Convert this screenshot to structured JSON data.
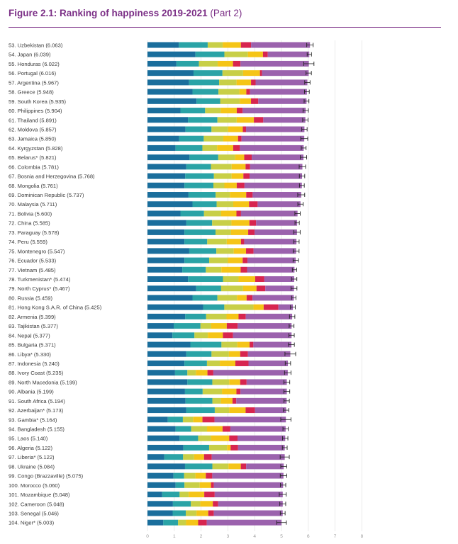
{
  "header": {
    "title_bold": "Figure 2.1: Ranking of happiness 2019-2021",
    "title_part": "(Part 2)"
  },
  "colors": {
    "title": "#7b2f86",
    "seg1": "#1a6e9c",
    "seg2": "#2aa3a6",
    "seg3": "#c8cf47",
    "seg4": "#f5c517",
    "seg5": "#d7254f",
    "seg6": "#9b62ad",
    "whisker": "#222222",
    "grid": "#e6e6e6"
  },
  "chart_data": {
    "type": "bar",
    "orientation": "horizontal-stacked",
    "title": "Figure 2.1: Ranking of happiness 2019-2021 (Part 2)",
    "xlim": [
      0,
      8
    ],
    "x_ticks": [
      "0",
      "1",
      "2",
      "3",
      "4",
      "5",
      "6",
      "7",
      "8"
    ],
    "segment_order": [
      "seg1",
      "seg2",
      "seg3",
      "seg4",
      "seg5",
      "seg6"
    ],
    "rows": [
      {
        "label": "53.  Uzbekistan (6.063)",
        "total": 6.063,
        "ci": 0.12,
        "segs": [
          1.17,
          1.08,
          0.56,
          0.68,
          0.38,
          2.2
        ]
      },
      {
        "label": "54.  Japan (6.039)",
        "total": 6.039,
        "ci": 0.08,
        "segs": [
          1.79,
          1.08,
          0.88,
          0.56,
          0.18,
          1.55
        ]
      },
      {
        "label": "55.  Honduras (6.022)",
        "total": 6.022,
        "ci": 0.19,
        "segs": [
          1.08,
          0.84,
          0.7,
          0.57,
          0.28,
          2.55
        ]
      },
      {
        "label": "56.  Portugal (6.016)",
        "total": 6.016,
        "ci": 0.1,
        "segs": [
          1.72,
          1.08,
          0.77,
          0.63,
          0.08,
          1.74
        ]
      },
      {
        "label": "57.  Argentina (5.967)",
        "total": 5.967,
        "ci": 0.1,
        "segs": [
          1.55,
          1.12,
          0.65,
          0.54,
          0.17,
          1.93
        ]
      },
      {
        "label": "58.  Greece (5.948)",
        "total": 5.948,
        "ci": 0.09,
        "segs": [
          1.68,
          0.97,
          0.78,
          0.26,
          0.14,
          2.12
        ]
      },
      {
        "label": "59.  South Korea (5.935)",
        "total": 5.935,
        "ci": 0.09,
        "segs": [
          1.83,
          0.88,
          0.73,
          0.42,
          0.27,
          1.8
        ]
      },
      {
        "label": "60.  Philippines (5.904)",
        "total": 5.904,
        "ci": 0.1,
        "segs": [
          1.23,
          0.92,
          0.58,
          0.6,
          0.22,
          2.35
        ]
      },
      {
        "label": "61.  Thailand (5.891)",
        "total": 5.891,
        "ci": 0.1,
        "segs": [
          1.51,
          1.1,
          0.72,
          0.64,
          0.35,
          1.57
        ]
      },
      {
        "label": "62.  Moldova (5.857)",
        "total": 5.857,
        "ci": 0.1,
        "segs": [
          1.42,
          0.97,
          0.62,
          0.55,
          0.12,
          2.18
        ]
      },
      {
        "label": "63.  Jamaica (5.850)",
        "total": 5.85,
        "ci": 0.13,
        "segs": [
          1.18,
          0.92,
          0.73,
          0.55,
          0.13,
          2.34
        ]
      },
      {
        "label": "64.  Kyrgyzstan (5.828)",
        "total": 5.828,
        "ci": 0.09,
        "segs": [
          1.05,
          1.0,
          0.55,
          0.6,
          0.25,
          2.38
        ]
      },
      {
        "label": "65.  Belarus* (5.821)",
        "total": 5.821,
        "ci": 0.12,
        "segs": [
          1.57,
          1.07,
          0.63,
          0.34,
          0.28,
          1.93
        ]
      },
      {
        "label": "66.  Colombia (5.781)",
        "total": 5.781,
        "ci": 0.12,
        "segs": [
          1.45,
          0.92,
          0.77,
          0.52,
          0.17,
          1.95
        ]
      },
      {
        "label": "67.  Bosnia and Herzegovina (5.768)",
        "total": 5.768,
        "ci": 0.1,
        "segs": [
          1.41,
          1.07,
          0.66,
          0.44,
          0.23,
          1.96
        ]
      },
      {
        "label": "68.  Mongolia (5.761)",
        "total": 5.761,
        "ci": 0.09,
        "segs": [
          1.38,
          1.08,
          0.41,
          0.46,
          0.29,
          2.14
        ]
      },
      {
        "label": "69.  Dominican Republic (5.737)",
        "total": 5.737,
        "ci": 0.13,
        "segs": [
          1.53,
          1.01,
          0.53,
          0.61,
          0.24,
          1.81
        ]
      },
      {
        "label": "70.  Malaysia (5.711)",
        "total": 5.711,
        "ci": 0.1,
        "segs": [
          1.68,
          0.9,
          0.62,
          0.59,
          0.32,
          1.6
        ]
      },
      {
        "label": "71.  Bolivia (5.600)",
        "total": 5.6,
        "ci": 0.1,
        "segs": [
          1.23,
          0.88,
          0.64,
          0.57,
          0.17,
          2.11
        ]
      },
      {
        "label": "72.  China (5.585)",
        "total": 5.585,
        "ci": 0.08,
        "segs": [
          1.45,
          0.96,
          0.72,
          0.67,
          0.25,
          1.53
        ]
      },
      {
        "label": "73.  Paraguay (5.578)",
        "total": 5.578,
        "ci": 0.12,
        "segs": [
          1.38,
          1.16,
          0.58,
          0.64,
          0.24,
          1.58
        ]
      },
      {
        "label": "74.  Peru (5.559)",
        "total": 5.559,
        "ci": 0.1,
        "segs": [
          1.38,
          0.85,
          0.73,
          0.53,
          0.12,
          1.95
        ]
      },
      {
        "label": "75.  Montenegro (5.547)",
        "total": 5.547,
        "ci": 0.11,
        "segs": [
          1.56,
          1.01,
          0.65,
          0.46,
          0.28,
          1.59
        ]
      },
      {
        "label": "76.  Ecuador (5.533)",
        "total": 5.533,
        "ci": 0.1,
        "segs": [
          1.38,
          0.92,
          0.7,
          0.55,
          0.18,
          1.8
        ]
      },
      {
        "label": "77.  Vietnam (5.485)",
        "total": 5.485,
        "ci": 0.08,
        "segs": [
          1.3,
          0.88,
          0.58,
          0.72,
          0.24,
          1.77
        ]
      },
      {
        "label": "78.  Turkmenistan* (5.474)",
        "total": 5.474,
        "ci": 0.1,
        "segs": [
          1.51,
          1.3,
          0.58,
          0.62,
          0.34,
          1.11
        ]
      },
      {
        "label": "79.  North Cyprus* (5.467)",
        "total": 5.467,
        "ci": 0.11,
        "segs": [
          1.82,
          0.93,
          0.82,
          0.5,
          0.33,
          1.07
        ]
      },
      {
        "label": "80.  Russia (5.459)",
        "total": 5.459,
        "ci": 0.08,
        "segs": [
          1.68,
          0.93,
          0.73,
          0.36,
          0.22,
          1.54
        ]
      },
      {
        "label": "81.  Hong Kong S.A.R. of China (5.425)",
        "total": 5.425,
        "ci": 0.09,
        "segs": [
          2.08,
          0.79,
          1.09,
          0.38,
          0.55,
          0.54
        ]
      },
      {
        "label": "82.  Armenia (5.399)",
        "total": 5.399,
        "ci": 0.1,
        "segs": [
          1.41,
          0.78,
          0.76,
          0.45,
          0.27,
          1.73
        ]
      },
      {
        "label": "83.  Tajikistan (5.377)",
        "total": 5.377,
        "ci": 0.09,
        "segs": [
          0.98,
          1.0,
          0.4,
          0.58,
          0.41,
          2.01
        ]
      },
      {
        "label": "84.  Nepal (5.377)",
        "total": 5.377,
        "ci": 0.1,
        "segs": [
          0.93,
          0.82,
          0.5,
          0.56,
          0.38,
          2.18
        ]
      },
      {
        "label": "85.  Bulgaria (5.371)",
        "total": 5.371,
        "ci": 0.11,
        "segs": [
          1.6,
          1.16,
          0.59,
          0.46,
          0.14,
          1.42
        ]
      },
      {
        "label": "86.  Libya* (5.330)",
        "total": 5.33,
        "ci": 0.2,
        "segs": [
          1.45,
          0.94,
          0.65,
          0.42,
          0.29,
          1.58
        ]
      },
      {
        "label": "87.  Indonesia (5.240)",
        "total": 5.24,
        "ci": 0.1,
        "segs": [
          1.38,
          0.84,
          0.48,
          0.58,
          0.49,
          1.47
        ]
      },
      {
        "label": "88.  Ivory Coast (5.235)",
        "total": 5.235,
        "ci": 0.12,
        "segs": [
          1.03,
          0.46,
          0.32,
          0.43,
          0.22,
          2.78
        ]
      },
      {
        "label": "89.  North Macedonia (5.199)",
        "total": 5.199,
        "ci": 0.11,
        "segs": [
          1.49,
          0.93,
          0.63,
          0.41,
          0.24,
          1.5
        ]
      },
      {
        "label": "90.  Albania (5.199)",
        "total": 5.199,
        "ci": 0.11,
        "segs": [
          1.4,
          0.66,
          0.72,
          0.54,
          0.15,
          1.73
        ]
      },
      {
        "label": "91.  South Africa (5.194)",
        "total": 5.194,
        "ci": 0.1,
        "segs": [
          1.42,
          1.0,
          0.32,
          0.43,
          0.14,
          1.88
        ]
      },
      {
        "label": "92.  Azerbaijan* (5.173)",
        "total": 5.173,
        "ci": 0.1,
        "segs": [
          1.45,
          1.06,
          0.54,
          0.61,
          0.35,
          1.16
        ]
      },
      {
        "label": "93.  Gambia* (5.164)",
        "total": 5.164,
        "ci": 0.19,
        "segs": [
          0.76,
          0.56,
          0.38,
          0.35,
          0.45,
          2.66
        ]
      },
      {
        "label": "94.  Bangladesh (5.155)",
        "total": 5.155,
        "ci": 0.1,
        "segs": [
          1.05,
          0.58,
          0.59,
          0.58,
          0.29,
          2.06
        ]
      },
      {
        "label": "95.  Laos (5.140)",
        "total": 5.14,
        "ci": 0.1,
        "segs": [
          1.2,
          0.69,
          0.48,
          0.68,
          0.31,
          1.78
        ]
      },
      {
        "label": "96.  Algeria (5.122)",
        "total": 5.122,
        "ci": 0.09,
        "segs": [
          1.34,
          0.96,
          0.67,
          0.13,
          0.28,
          1.74
        ]
      },
      {
        "label": "97.  Liberia* (5.122)",
        "total": 5.122,
        "ci": 0.17,
        "segs": [
          0.63,
          0.7,
          0.41,
          0.37,
          0.29,
          2.72
        ]
      },
      {
        "label": "98.  Ukraine (5.084)",
        "total": 5.084,
        "ci": 0.11,
        "segs": [
          1.4,
          1.02,
          0.6,
          0.46,
          0.2,
          1.4
        ]
      },
      {
        "label": "99.  Congo (Brazzaville) (5.075)",
        "total": 5.075,
        "ci": 0.12,
        "segs": [
          0.97,
          0.4,
          0.42,
          0.39,
          0.24,
          2.66
        ]
      },
      {
        "label": "100. Morocco (5.060)",
        "total": 5.06,
        "ci": 0.1,
        "segs": [
          1.05,
          0.33,
          0.57,
          0.42,
          0.11,
          2.58
        ]
      },
      {
        "label": "101.  Mozambique (5.048)",
        "total": 5.048,
        "ci": 0.13,
        "segs": [
          0.55,
          0.65,
          0.34,
          0.58,
          0.39,
          2.54
        ]
      },
      {
        "label": "102. Cameroon (5.048)",
        "total": 5.048,
        "ci": 0.11,
        "segs": [
          0.95,
          0.67,
          0.35,
          0.47,
          0.2,
          2.41
        ]
      },
      {
        "label": "103. Senegal (5.046)",
        "total": 5.046,
        "ci": 0.09,
        "segs": [
          0.94,
          0.49,
          0.4,
          0.44,
          0.21,
          2.57
        ]
      },
      {
        "label": "104. Niger* (5.003)",
        "total": 5.003,
        "ci": 0.18,
        "segs": [
          0.59,
          0.55,
          0.3,
          0.45,
          0.32,
          2.79
        ]
      }
    ]
  }
}
